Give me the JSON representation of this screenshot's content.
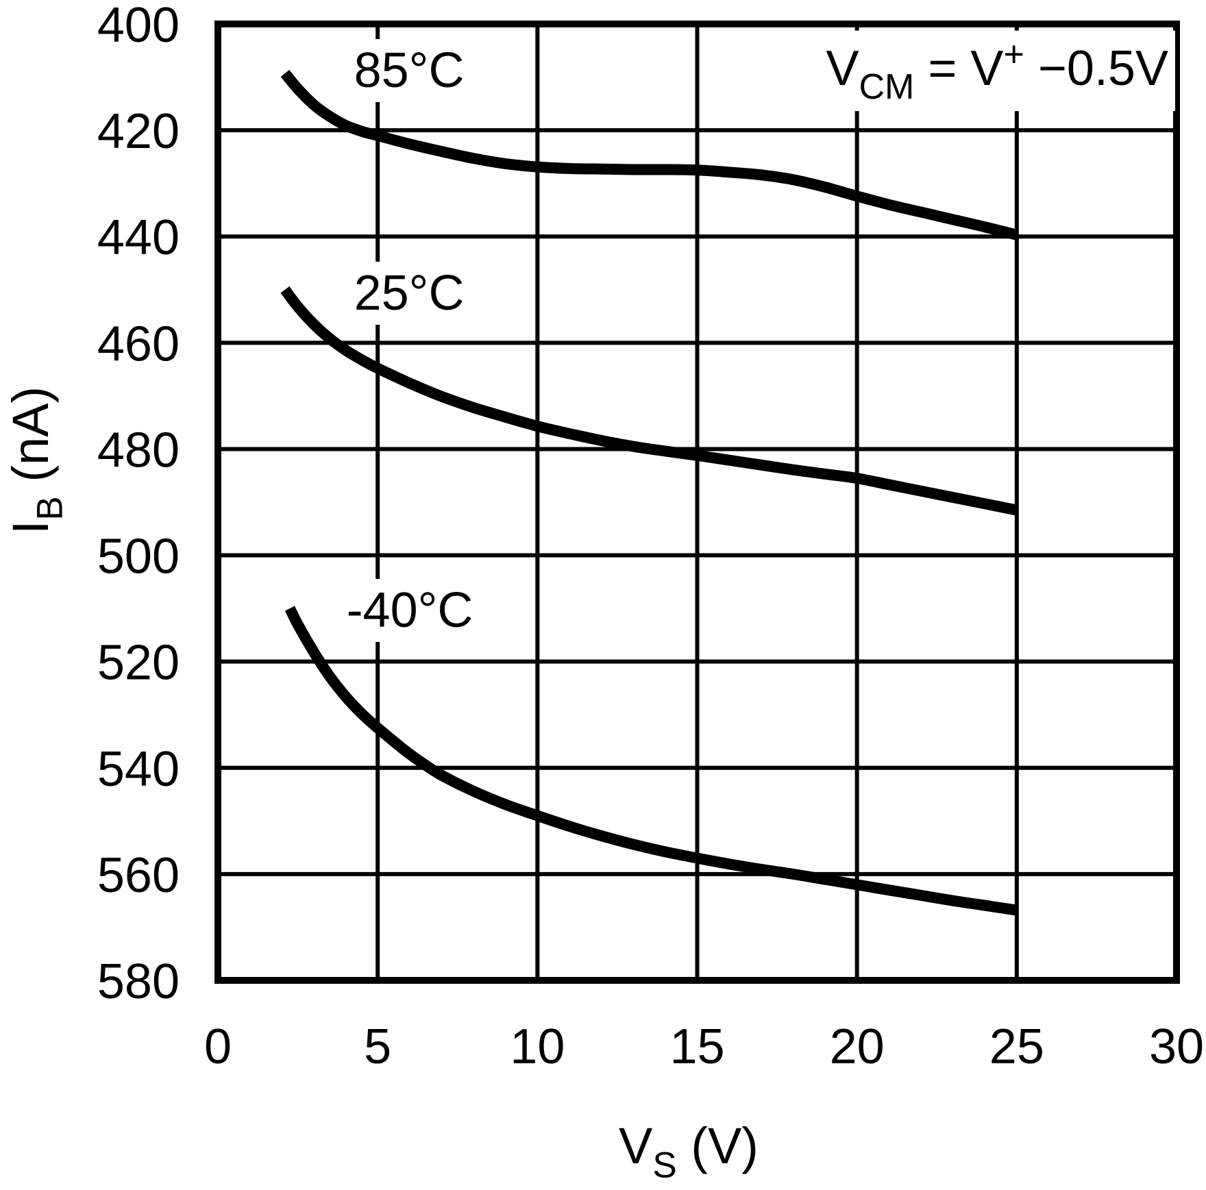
{
  "page": {
    "background": "#ffffff",
    "ink_color": "#000000"
  },
  "chart_data": {
    "type": "line",
    "title": "",
    "xlabel_parts": [
      {
        "t": "V"
      },
      {
        "t": "S",
        "script": "sub"
      },
      {
        "t": " (V)"
      }
    ],
    "ylabel_parts": [
      {
        "t": "I"
      },
      {
        "t": "B",
        "script": "sub"
      },
      {
        "t": " (nA)"
      }
    ],
    "annotation_parts": [
      {
        "t": "V"
      },
      {
        "t": "CM",
        "script": "sub"
      },
      {
        "t": " = V"
      },
      {
        "t": "+",
        "script": "sup"
      },
      {
        "t": " −0.5V"
      }
    ],
    "annotation_plain": "VCM = V+ −0.5V",
    "x_axis": {
      "min": 0,
      "max": 30,
      "ticks": [
        0,
        5,
        10,
        15,
        20,
        25,
        30
      ],
      "grid": true
    },
    "y_axis": {
      "min": 400,
      "max": 580,
      "ticks": [
        400,
        420,
        440,
        460,
        480,
        500,
        520,
        540,
        560,
        580
      ],
      "grid": true,
      "direction": "values increase downward"
    },
    "legend_position": "labels next to curves",
    "series": [
      {
        "name": "85°C",
        "points": [
          [
            2.1,
            409.3
          ],
          [
            2.5,
            412.2
          ],
          [
            3,
            415.2
          ],
          [
            3.5,
            417.4
          ],
          [
            4,
            419.1
          ],
          [
            4.5,
            420.2
          ],
          [
            5,
            421.0
          ],
          [
            6,
            422.6
          ],
          [
            7,
            424.0
          ],
          [
            8,
            425.3
          ],
          [
            9,
            426.3
          ],
          [
            10,
            426.9
          ],
          [
            11,
            427.2
          ],
          [
            12,
            427.3
          ],
          [
            13,
            427.4
          ],
          [
            14,
            427.4
          ],
          [
            15,
            427.5
          ],
          [
            16,
            427.9
          ],
          [
            17,
            428.4
          ],
          [
            18,
            429.3
          ],
          [
            19,
            430.7
          ],
          [
            20,
            432.4
          ],
          [
            21,
            434.0
          ],
          [
            22,
            435.4
          ],
          [
            23,
            436.8
          ],
          [
            24,
            438.2
          ],
          [
            25,
            439.7
          ]
        ]
      },
      {
        "name": "25°C",
        "points": [
          [
            2.1,
            450.0
          ],
          [
            2.5,
            453.2
          ],
          [
            3,
            456.5
          ],
          [
            3.5,
            459.2
          ],
          [
            4,
            461.4
          ],
          [
            4.5,
            463.2
          ],
          [
            5,
            464.8
          ],
          [
            6,
            467.6
          ],
          [
            7,
            470.1
          ],
          [
            8,
            472.2
          ],
          [
            9,
            474.0
          ],
          [
            10,
            475.7
          ],
          [
            11,
            477.1
          ],
          [
            12,
            478.4
          ],
          [
            13,
            479.5
          ],
          [
            14,
            480.4
          ],
          [
            15,
            481.2
          ],
          [
            16,
            482.1
          ],
          [
            17,
            483.0
          ],
          [
            18,
            483.9
          ],
          [
            19,
            484.7
          ],
          [
            20,
            485.5
          ],
          [
            21,
            486.7
          ],
          [
            22,
            487.9
          ],
          [
            23,
            489.1
          ],
          [
            24,
            490.3
          ],
          [
            25,
            491.5
          ]
        ]
      },
      {
        "name": "-40°C",
        "points": [
          [
            2.25,
            510.0
          ],
          [
            2.5,
            513.0
          ],
          [
            3,
            518.2
          ],
          [
            3.5,
            522.8
          ],
          [
            4,
            526.6
          ],
          [
            4.5,
            529.8
          ],
          [
            5,
            532.5
          ],
          [
            5.5,
            535.0
          ],
          [
            6,
            537.4
          ],
          [
            6.5,
            539.5
          ],
          [
            7,
            541.4
          ],
          [
            8,
            544.4
          ],
          [
            9,
            546.9
          ],
          [
            10,
            549.0
          ],
          [
            11,
            551.0
          ],
          [
            12,
            552.8
          ],
          [
            13,
            554.4
          ],
          [
            14,
            555.8
          ],
          [
            15,
            557.0
          ],
          [
            16,
            558.1
          ],
          [
            17,
            559.1
          ],
          [
            18,
            560.0
          ],
          [
            19,
            561.0
          ],
          [
            20,
            562.0
          ],
          [
            21,
            563.0
          ],
          [
            22,
            564.0
          ],
          [
            23,
            565.0
          ],
          [
            24,
            565.9
          ],
          [
            25,
            566.8
          ]
        ]
      }
    ]
  }
}
